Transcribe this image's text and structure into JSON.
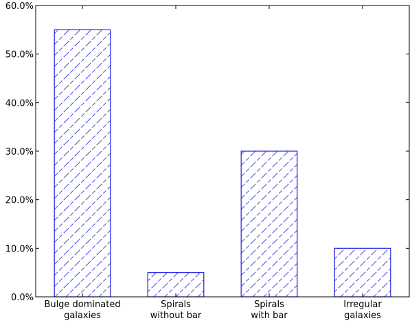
{
  "chart_data": {
    "type": "bar",
    "title": "",
    "xlabel": "",
    "ylabel": "",
    "categories": [
      [
        "Bulge dominated",
        "galaxies"
      ],
      [
        "Spirals",
        "without bar"
      ],
      [
        "Spirals",
        "with bar"
      ],
      [
        "Irregular",
        "galaxies"
      ]
    ],
    "values": [
      55.0,
      5.0,
      30.0,
      10.0
    ],
    "ylim": [
      0,
      60
    ],
    "yticks": [
      0,
      10,
      20,
      30,
      40,
      50,
      60
    ],
    "ytick_labels": [
      "0.0%",
      "10.0%",
      "20.0%",
      "30.0%",
      "40.0%",
      "50.0%",
      "60.0%"
    ],
    "grid": false,
    "legend": "none",
    "bar_style": "hatched",
    "colors": {
      "bar_edge": "#1f1fe6",
      "hatch": "#4a4ae0",
      "axis": "#000000",
      "background": "#ffffff"
    }
  }
}
